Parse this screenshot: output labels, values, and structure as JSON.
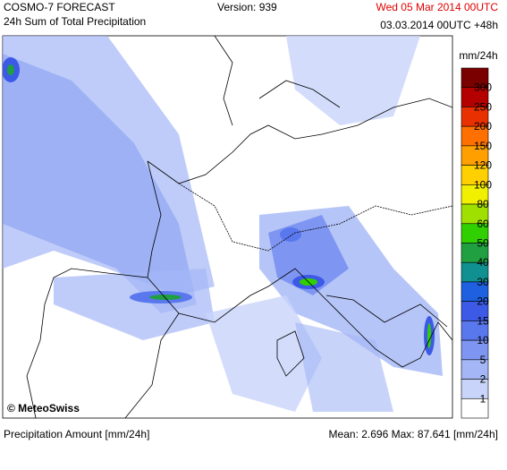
{
  "header": {
    "product": "COSMO-7 FORECAST",
    "subtitle": "24h Sum of Total Precipitation",
    "version": "Version: 939",
    "valid_time": "Wed 05 Mar 2014 00UTC",
    "run_time": "03.03.2014 00UTC +48h"
  },
  "legend": {
    "unit": "mm/24h",
    "labels": [
      "300",
      "250",
      "200",
      "150",
      "120",
      "100",
      "80",
      "60",
      "50",
      "40",
      "30",
      "20",
      "15",
      "10",
      "5",
      "2",
      "1"
    ],
    "colors": [
      "#7a0000",
      "#b40000",
      "#e83000",
      "#ff7000",
      "#ffa000",
      "#ffd000",
      "#f0f000",
      "#a0e000",
      "#30d000",
      "#20a040",
      "#109090",
      "#1e60e0",
      "#3c5ae6",
      "#5a78ee",
      "#7e96f2",
      "#a4b6f6",
      "#c8d4fa",
      "#ffffff"
    ]
  },
  "credit": "© MeteoSwiss",
  "footer": {
    "left": "Precipitation Amount [mm/24h]",
    "right": "Mean:  2.696 Max: 87.641 [mm/24h]"
  }
}
